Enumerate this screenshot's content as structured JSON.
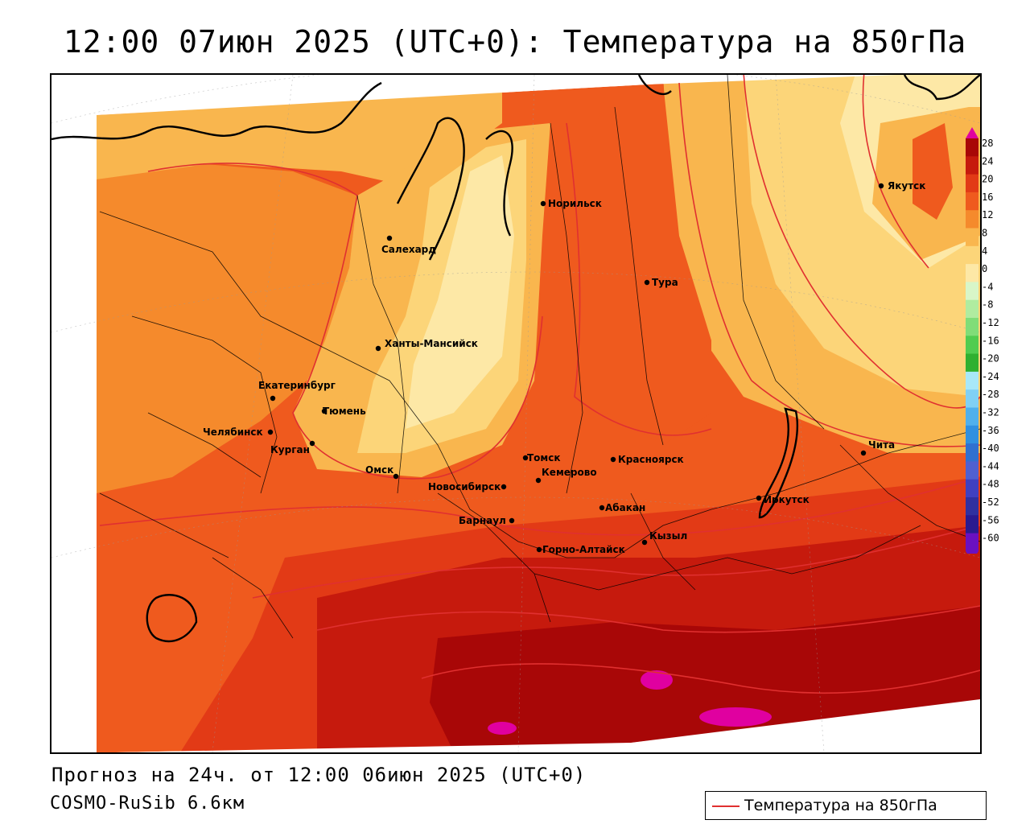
{
  "title": "12:00 07июн 2025 (UTC+0): Температура на 850гПа",
  "footer": {
    "forecast": "Прогноз на 24ч. от 12:00 06июн 2025 (UTC+0)",
    "model": "COSMO-RuSib 6.6км"
  },
  "legend": {
    "label": "Температура на 850гПа",
    "line_color": "#e03030"
  },
  "colors": {
    "t_below_0": "#fde8a6",
    "t_0_4": "#fcd579",
    "t_4_8": "#f9b64e",
    "t_8_12": "#f58a2c",
    "t_12_16": "#ef5a1e",
    "t_16_20": "#e23a16",
    "t_20_24": "#c61a0d",
    "t_24_28": "#a80707",
    "t_above_28": "#e000a0",
    "contour": "#e03030"
  },
  "colorbar": {
    "labels": [
      "28",
      "24",
      "20",
      "16",
      "12",
      "8",
      "4",
      "0",
      "-4",
      "-8",
      "-12",
      "-16",
      "-20",
      "-24",
      "-28",
      "-32",
      "-36",
      "-40",
      "-44",
      "-48",
      "-52",
      "-56",
      "-60"
    ]
  },
  "cities": [
    {
      "name": "Якутск"
    },
    {
      "name": "Норильск"
    },
    {
      "name": "Салехард"
    },
    {
      "name": "Тура"
    },
    {
      "name": "Ханты-Мансийск"
    },
    {
      "name": "Екатеринбург"
    },
    {
      "name": "Тюмень"
    },
    {
      "name": "Челябинск"
    },
    {
      "name": "Курган"
    },
    {
      "name": "Омск"
    },
    {
      "name": "Томск"
    },
    {
      "name": "Новосибирск"
    },
    {
      "name": "Кемерово"
    },
    {
      "name": "Красноярск"
    },
    {
      "name": "Абакан"
    },
    {
      "name": "Барнаул"
    },
    {
      "name": "Горно-Алтайск"
    },
    {
      "name": "Кызыл"
    },
    {
      "name": "Иркутск"
    },
    {
      "name": "Чита"
    }
  ],
  "isotherm_labels": []
}
